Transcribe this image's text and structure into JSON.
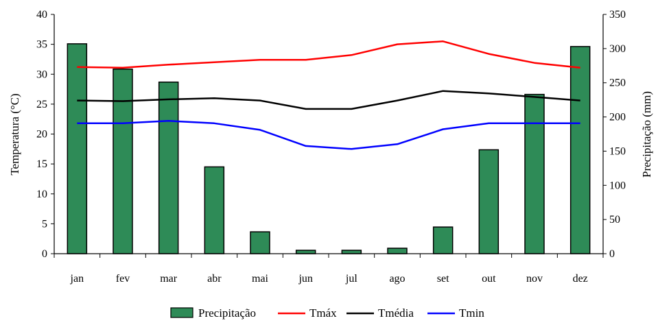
{
  "chart_data": {
    "type": "bar",
    "categories": [
      "jan",
      "fev",
      "mar",
      "abr",
      "mai",
      "jun",
      "jul",
      "ago",
      "set",
      "out",
      "nov",
      "dez"
    ],
    "y_left": {
      "label": "Temperatura (°C)",
      "lim": [
        0,
        40
      ],
      "ticks": [
        "0",
        "5",
        "10",
        "15",
        "20",
        "25",
        "30",
        "35",
        "40"
      ]
    },
    "y_right": {
      "label": "Precipitação (mm)",
      "lim": [
        0,
        350
      ],
      "ticks": [
        "0",
        "50",
        "100",
        "150",
        "200",
        "250",
        "300",
        "350"
      ]
    },
    "series": [
      {
        "name": "Precipitação",
        "kind": "bar",
        "axis": "right",
        "color": "#2e8b57",
        "values": [
          307,
          270,
          251,
          127,
          32,
          5,
          5,
          8,
          39,
          152,
          233,
          303
        ]
      },
      {
        "name": "Tmáx",
        "kind": "line",
        "axis": "left",
        "color": "#ff0000",
        "values": [
          31.2,
          31.1,
          31.6,
          32.0,
          32.4,
          32.4,
          33.2,
          35.0,
          35.5,
          33.4,
          31.9,
          31.1
        ]
      },
      {
        "name": "Tmédia",
        "kind": "line",
        "axis": "left",
        "color": "#000000",
        "values": [
          25.6,
          25.5,
          25.8,
          26.0,
          25.6,
          24.2,
          24.2,
          25.6,
          27.2,
          26.8,
          26.2,
          25.6
        ]
      },
      {
        "name": "Tmin",
        "kind": "line",
        "axis": "left",
        "color": "#0000ff",
        "values": [
          21.8,
          21.8,
          22.2,
          21.8,
          20.7,
          18.0,
          17.5,
          18.3,
          20.8,
          21.8,
          21.8,
          21.8
        ]
      }
    ],
    "legend_position": "bottom",
    "grid": false
  }
}
